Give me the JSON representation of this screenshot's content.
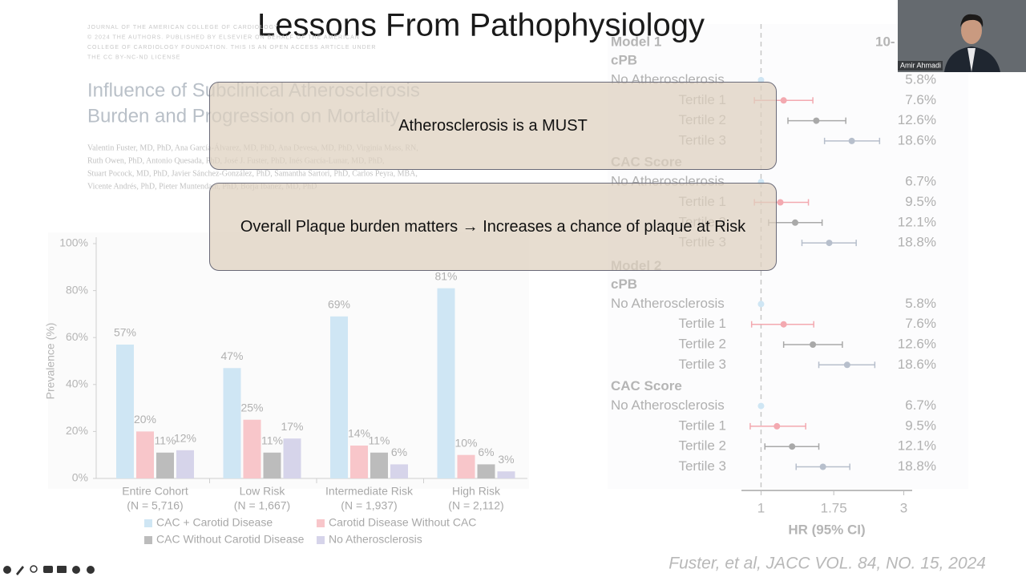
{
  "slide_title": "Lessons From Pathophysiology",
  "journal_header": [
    "JOURNAL OF THE AMERICAN COLLEGE OF CARDIOLOGY",
    "© 2024 THE AUTHORS. PUBLISHED BY ELSEVIER ON BEHALF OF THE AMERICAN",
    "COLLEGE OF CARDIOLOGY FOUNDATION. THIS IS AN OPEN ACCESS ARTICLE UNDER",
    "THE CC BY-NC-ND LICENSE"
  ],
  "paper_title": [
    "Influence of Subclinical Atherosclerosis",
    "Burden and Progression on Mortality"
  ],
  "authors": [
    "Valentin Fuster, MD, PhD, Ana García-Álvarez, MD, PhD, Ana Devesa, MD, PhD, Virginia Mass, RN,",
    "Ruth Owen, PhD, Antonio Quesada, PhD, José J. Fuster, PhD, Inés García-Lunar, MD, PhD,",
    "Stuart Pocock, MD, PhD, Javier Sánchez-González, PhD, Samantha Sartori, PhD, Carlos Peyra, MBA,",
    "Vicente Andrés, PhD, Pieter Muntendam, PhD, Borja Ibanez, MD, PhD"
  ],
  "callouts": [
    "Atherosclerosis is a MUST",
    "Overall Plaque burden matters → Increases a chance of plaque at Risk"
  ],
  "citation": "Fuster, et al, JACC VOL. 84, NO. 15, 2024",
  "presenter": "Amir Ahmadi",
  "chart_data": [
    {
      "type": "bar",
      "ylabel": "Prevalence (%)",
      "categories": [
        "Entire Cohort",
        "Low Risk",
        "Intermediate Risk",
        "High Risk"
      ],
      "category_sublabels": [
        "(N = 5,716)",
        "(N = 1,667)",
        "(N = 1,937)",
        "(N = 2,112)"
      ],
      "ylim": [
        0,
        100
      ],
      "yticks": [
        {
          "value": 0,
          "label": "0%"
        },
        {
          "value": 20,
          "label": "20%"
        },
        {
          "value": 40,
          "label": "40%"
        },
        {
          "value": 60,
          "label": "60%"
        },
        {
          "value": 80,
          "label": "80%"
        },
        {
          "value": 100,
          "label": "100%"
        }
      ],
      "series": [
        {
          "name": "CAC + Carotid Disease",
          "color": "#cfe6f4",
          "values": [
            57,
            47,
            69,
            81
          ],
          "value_labels": [
            "57%",
            "47%",
            "69%",
            "81%"
          ]
        },
        {
          "name": "Carotid Disease Without CAC",
          "color": "#f8c6ca",
          "values": [
            20,
            25,
            14,
            10
          ],
          "value_labels": [
            "20%",
            "25%",
            "14%",
            "10%"
          ]
        },
        {
          "name": "CAC Without Carotid Disease",
          "color": "#bcbcbc",
          "values": [
            11,
            11,
            11,
            6
          ],
          "value_labels": [
            "11%",
            "11%",
            "11%",
            "6%"
          ]
        },
        {
          "name": "No Atherosclerosis",
          "color": "#d6d4ea",
          "values": [
            12,
            17,
            6,
            3
          ],
          "value_labels": [
            "12%",
            "17%",
            "6%",
            "3%"
          ]
        }
      ]
    },
    {
      "type": "forest",
      "column_header": "10-",
      "xlabel": "HR (95% CI)",
      "xscale": "log",
      "xlim": [
        0.86,
        3.2
      ],
      "xticks": [
        1,
        1.75,
        3
      ],
      "models": [
        {
          "name": "Model 1",
          "groups": [
            {
              "name": "cPB",
              "rows": [
                {
                  "label": "No Atherosclerosis",
                  "rate": "5.8%",
                  "hr": 1,
                  "color": "#cfe6f4"
                },
                {
                  "label": "Tertile 1",
                  "rate": "7.6%",
                  "hr": 1.19,
                  "lo": 0.95,
                  "hi": 1.49,
                  "color": "#f3a9b0"
                },
                {
                  "label": "Tertile 2",
                  "rate": "12.6%",
                  "hr": 1.53,
                  "lo": 1.23,
                  "hi": 1.92,
                  "color": "#a9a9a9"
                },
                {
                  "label": "Tertile 3",
                  "rate": "18.6%",
                  "hr": 2.01,
                  "lo": 1.63,
                  "hi": 2.49,
                  "color": "#b7bfcc"
                }
              ]
            },
            {
              "name": "CAC Score",
              "rows": [
                {
                  "label": "No Atherosclerosis",
                  "rate": "6.7%",
                  "hr": 1,
                  "color": "#cfe6f4"
                },
                {
                  "label": "Tertile 1",
                  "rate": "9.5%",
                  "hr": 1.16,
                  "lo": 0.95,
                  "hi": 1.44,
                  "color": "#f3a9b0"
                },
                {
                  "label": "Tertile 2",
                  "rate": "12.1%",
                  "hr": 1.3,
                  "lo": 1.06,
                  "hi": 1.6,
                  "color": "#a9a9a9"
                },
                {
                  "label": "Tertile 3",
                  "rate": "18.8%",
                  "hr": 1.69,
                  "lo": 1.37,
                  "hi": 2.08,
                  "color": "#b7bfcc"
                }
              ]
            }
          ]
        },
        {
          "name": "Model 2",
          "groups": [
            {
              "name": "cPB",
              "rows": [
                {
                  "label": "No Atherosclerosis",
                  "rate": "5.8%",
                  "hr": 1,
                  "color": "#cfe6f4"
                },
                {
                  "label": "Tertile 1",
                  "rate": "7.6%",
                  "hr": 1.19,
                  "lo": 0.93,
                  "hi": 1.5,
                  "color": "#f3a9b0"
                },
                {
                  "label": "Tertile 2",
                  "rate": "12.6%",
                  "hr": 1.49,
                  "lo": 1.19,
                  "hi": 1.87,
                  "color": "#a9a9a9"
                },
                {
                  "label": "Tertile 3",
                  "rate": "18.6%",
                  "hr": 1.94,
                  "lo": 1.56,
                  "hi": 2.4,
                  "color": "#b7bfcc"
                }
              ]
            },
            {
              "name": "CAC Score",
              "rows": [
                {
                  "label": "No Atherosclerosis",
                  "rate": "6.7%",
                  "hr": 1,
                  "color": "#cfe6f4"
                },
                {
                  "label": "Tertile 1",
                  "rate": "9.5%",
                  "hr": 1.13,
                  "lo": 0.92,
                  "hi": 1.41,
                  "color": "#f3a9b0"
                },
                {
                  "label": "Tertile 2",
                  "rate": "12.1%",
                  "hr": 1.27,
                  "lo": 1.03,
                  "hi": 1.56,
                  "color": "#a9a9a9"
                },
                {
                  "label": "Tertile 3",
                  "rate": "18.8%",
                  "hr": 1.61,
                  "lo": 1.31,
                  "hi": 1.98,
                  "color": "#b7bfcc"
                }
              ]
            }
          ]
        }
      ]
    }
  ]
}
